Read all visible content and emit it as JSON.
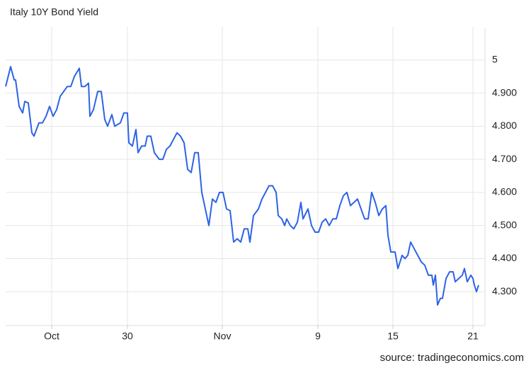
{
  "chart_data": {
    "type": "line",
    "title": "Italy 10Y Bond Yield",
    "source": "source: tradingeconomics.com",
    "x": [
      0,
      7,
      12,
      14,
      19,
      24,
      27,
      32,
      37,
      40,
      47,
      52,
      57,
      62,
      67,
      72,
      77,
      87,
      92,
      97,
      104,
      107,
      112,
      117,
      119,
      124,
      130,
      135,
      140,
      144,
      150,
      154,
      162,
      167,
      172,
      174,
      179,
      184,
      187,
      192,
      197,
      200,
      205,
      210,
      217,
      222,
      227,
      232,
      237,
      242,
      247,
      252,
      257,
      262,
      267,
      272,
      277,
      282,
      287,
      292,
      297,
      302,
      307,
      312,
      317,
      322,
      327,
      332,
      337,
      342,
      345,
      350,
      357,
      362,
      367,
      372,
      377,
      382,
      385,
      390,
      394,
      397,
      402,
      407,
      412,
      417,
      420,
      427,
      432,
      437,
      442,
      447,
      452,
      457,
      462,
      467,
      472,
      477,
      482,
      487,
      492,
      497,
      502,
      507,
      512,
      517,
      522,
      527,
      532,
      537,
      540,
      544,
      550,
      554,
      560,
      564,
      568,
      572,
      577,
      582,
      587,
      592,
      597,
      602,
      604,
      607,
      610,
      614,
      617,
      622,
      627,
      632,
      635,
      640,
      645,
      648,
      652,
      657,
      660,
      662,
      665,
      668
    ],
    "values": [
      4.92,
      4.98,
      4.94,
      4.94,
      4.86,
      4.84,
      4.875,
      4.87,
      4.78,
      4.77,
      4.81,
      4.81,
      4.83,
      4.86,
      4.83,
      4.85,
      4.89,
      4.92,
      4.92,
      4.95,
      4.975,
      4.92,
      4.92,
      4.93,
      4.83,
      4.85,
      4.905,
      4.905,
      4.82,
      4.8,
      4.835,
      4.8,
      4.81,
      4.84,
      4.84,
      4.75,
      4.74,
      4.79,
      4.72,
      4.74,
      4.74,
      4.77,
      4.77,
      4.72,
      4.7,
      4.7,
      4.73,
      4.74,
      4.76,
      4.78,
      4.77,
      4.75,
      4.67,
      4.66,
      4.72,
      4.72,
      4.6,
      4.55,
      4.5,
      4.58,
      4.57,
      4.6,
      4.6,
      4.55,
      4.545,
      4.45,
      4.46,
      4.45,
      4.49,
      4.49,
      4.45,
      4.53,
      4.55,
      4.58,
      4.6,
      4.62,
      4.62,
      4.6,
      4.53,
      4.52,
      4.5,
      4.52,
      4.5,
      4.49,
      4.51,
      4.57,
      4.52,
      4.55,
      4.5,
      4.48,
      4.48,
      4.51,
      4.52,
      4.5,
      4.52,
      4.52,
      4.56,
      4.59,
      4.6,
      4.56,
      4.57,
      4.58,
      4.55,
      4.52,
      4.52,
      4.6,
      4.57,
      4.53,
      4.55,
      4.56,
      4.47,
      4.42,
      4.42,
      4.37,
      4.41,
      4.4,
      4.41,
      4.45,
      4.43,
      4.41,
      4.39,
      4.38,
      4.35,
      4.35,
      4.32,
      4.35,
      4.26,
      4.28,
      4.28,
      4.34,
      4.36,
      4.36,
      4.33,
      4.34,
      4.35,
      4.37,
      4.33,
      4.35,
      4.34,
      4.32,
      4.3,
      4.32
    ],
    "color": "#2d63e6",
    "xlim": [
      0,
      677
    ],
    "xticks": [
      {
        "value": 65,
        "label": "Oct"
      },
      {
        "value": 172,
        "label": "30"
      },
      {
        "value": 306,
        "label": "Nov"
      },
      {
        "value": 441,
        "label": "9"
      },
      {
        "value": 547,
        "label": "15"
      },
      {
        "value": 660,
        "label": "21"
      }
    ],
    "ylim": [
      4.2,
      5.1
    ],
    "yticks": [
      {
        "value": 4.3,
        "label": "4.300"
      },
      {
        "value": 4.4,
        "label": "4.400"
      },
      {
        "value": 4.5,
        "label": "4.500"
      },
      {
        "value": 4.6,
        "label": "4.600"
      },
      {
        "value": 4.7,
        "label": "4.700"
      },
      {
        "value": 4.8,
        "label": "4.800"
      },
      {
        "value": 4.9,
        "label": "4.900"
      },
      5
    ],
    "grid": true
  }
}
